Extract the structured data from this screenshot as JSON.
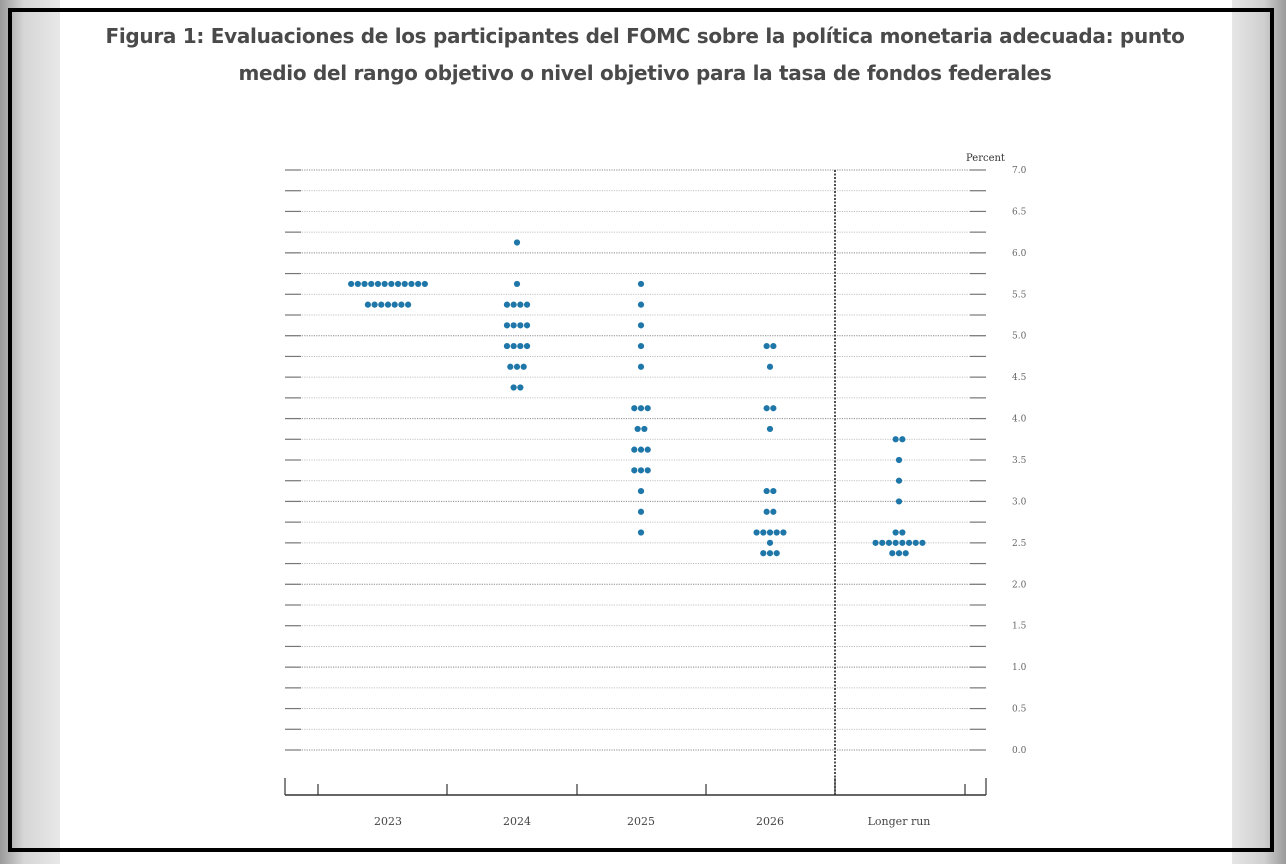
{
  "figure": {
    "title": "Figura 1: Evaluaciones de los participantes del FOMC sobre la política monetaria adecuada: punto medio del rango objetivo o nivel objetivo para la tasa de fondos federales"
  },
  "chart_data": {
    "type": "scatter",
    "subtype": "dot-plot",
    "title": "Figura 1: Evaluaciones de los participantes del FOMC sobre la política monetaria adecuada: punto medio del rango objetivo o nivel objetivo para la tasa de fondos federales",
    "ylabel": "Percent",
    "ylim": [
      0,
      7
    ],
    "yticks": [
      "0.0",
      "0.5",
      "1.0",
      "1.5",
      "2.0",
      "2.5",
      "3.0",
      "3.5",
      "4.0",
      "4.5",
      "5.0",
      "5.5",
      "6.0",
      "6.5",
      "7.0"
    ],
    "categories": [
      "2023",
      "2024",
      "2025",
      "2026",
      "Longer run"
    ],
    "grid": true,
    "dot_color": "#1f77a9",
    "series": [
      {
        "category": "2023",
        "points": [
          {
            "y": 5.625,
            "count": 12
          },
          {
            "y": 5.375,
            "count": 7
          }
        ]
      },
      {
        "category": "2024",
        "points": [
          {
            "y": 6.125,
            "count": 1
          },
          {
            "y": 5.625,
            "count": 1
          },
          {
            "y": 5.375,
            "count": 4
          },
          {
            "y": 5.125,
            "count": 4
          },
          {
            "y": 4.875,
            "count": 4
          },
          {
            "y": 4.625,
            "count": 3
          },
          {
            "y": 4.375,
            "count": 2
          }
        ]
      },
      {
        "category": "2025",
        "points": [
          {
            "y": 5.625,
            "count": 1
          },
          {
            "y": 5.375,
            "count": 1
          },
          {
            "y": 5.125,
            "count": 1
          },
          {
            "y": 4.875,
            "count": 1
          },
          {
            "y": 4.625,
            "count": 1
          },
          {
            "y": 4.125,
            "count": 3
          },
          {
            "y": 3.875,
            "count": 2
          },
          {
            "y": 3.625,
            "count": 3
          },
          {
            "y": 3.375,
            "count": 3
          },
          {
            "y": 3.125,
            "count": 1
          },
          {
            "y": 2.875,
            "count": 1
          },
          {
            "y": 2.625,
            "count": 1
          }
        ]
      },
      {
        "category": "2026",
        "points": [
          {
            "y": 4.875,
            "count": 2
          },
          {
            "y": 4.625,
            "count": 1
          },
          {
            "y": 4.125,
            "count": 2
          },
          {
            "y": 3.875,
            "count": 1
          },
          {
            "y": 3.125,
            "count": 2
          },
          {
            "y": 2.875,
            "count": 2
          },
          {
            "y": 2.625,
            "count": 5
          },
          {
            "y": 2.5,
            "count": 1
          },
          {
            "y": 2.375,
            "count": 3
          }
        ]
      },
      {
        "category": "Longer run",
        "points": [
          {
            "y": 3.75,
            "count": 2
          },
          {
            "y": 3.5,
            "count": 1
          },
          {
            "y": 3.25,
            "count": 1
          },
          {
            "y": 3.0,
            "count": 1
          },
          {
            "y": 2.625,
            "count": 2
          },
          {
            "y": 2.5,
            "count": 8
          },
          {
            "y": 2.375,
            "count": 3
          }
        ]
      }
    ]
  }
}
